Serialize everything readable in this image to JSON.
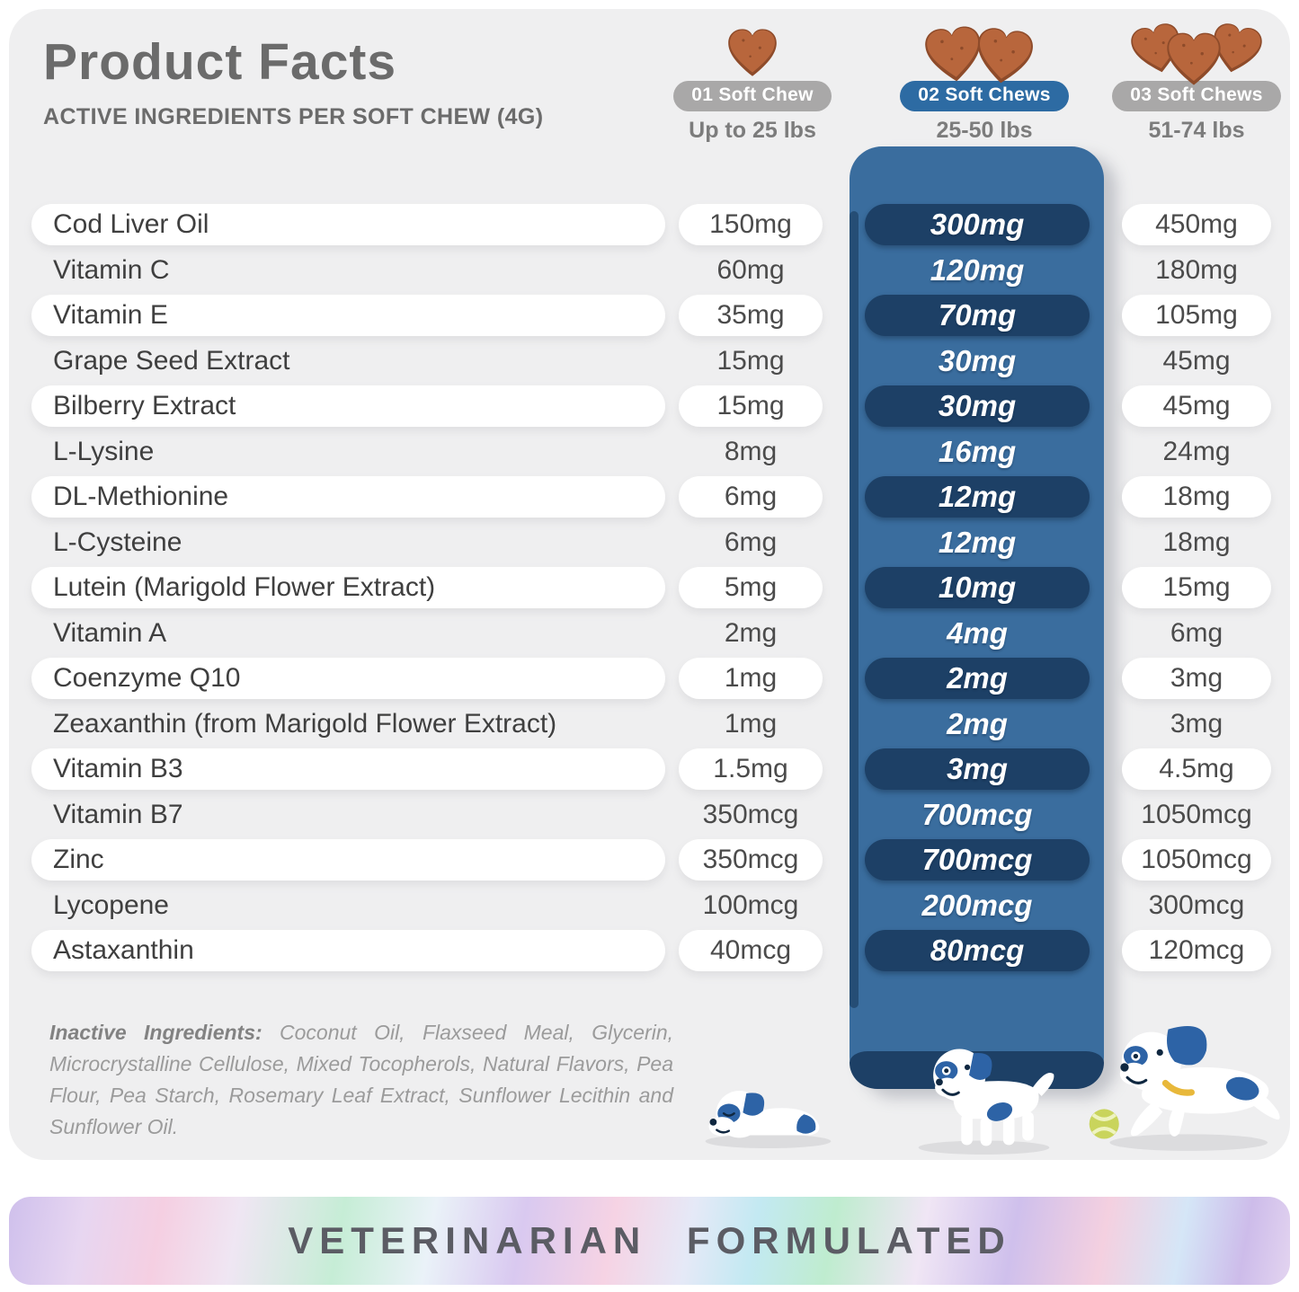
{
  "header": {
    "title": "Product Facts",
    "subtitle": "ACTIVE INGREDIENTS PER SOFT CHEW (4G)"
  },
  "dose_columns": [
    {
      "badge": "01 Soft Chew",
      "weight_range": "Up to 25 lbs",
      "chew_count": 1,
      "highlighted": false
    },
    {
      "badge": "02 Soft Chews",
      "weight_range": "25-50 lbs",
      "chew_count": 2,
      "highlighted": true
    },
    {
      "badge": "03 Soft Chews",
      "weight_range": "51-74 lbs",
      "chew_count": 3,
      "highlighted": false
    }
  ],
  "ingredients": [
    {
      "name": "Cod Liver Oil",
      "doses": [
        "150mg",
        "300mg",
        "450mg"
      ]
    },
    {
      "name": "Vitamin C",
      "doses": [
        "60mg",
        "120mg",
        "180mg"
      ]
    },
    {
      "name": "Vitamin E",
      "doses": [
        "35mg",
        "70mg",
        "105mg"
      ]
    },
    {
      "name": "Grape Seed Extract",
      "doses": [
        "15mg",
        "30mg",
        "45mg"
      ]
    },
    {
      "name": "Bilberry Extract",
      "doses": [
        "15mg",
        "30mg",
        "45mg"
      ]
    },
    {
      "name": "L-Lysine",
      "doses": [
        "8mg",
        "16mg",
        "24mg"
      ]
    },
    {
      "name": "DL-Methionine",
      "doses": [
        "6mg",
        "12mg",
        "18mg"
      ]
    },
    {
      "name": "L-Cysteine",
      "doses": [
        "6mg",
        "12mg",
        "18mg"
      ]
    },
    {
      "name": "Lutein (Marigold Flower Extract)",
      "doses": [
        "5mg",
        "10mg",
        "15mg"
      ]
    },
    {
      "name": "Vitamin A",
      "doses": [
        "2mg",
        "4mg",
        "6mg"
      ]
    },
    {
      "name": "Coenzyme Q10",
      "doses": [
        "1mg",
        "2mg",
        "3mg"
      ]
    },
    {
      "name": "Zeaxanthin (from Marigold Flower Extract)",
      "doses": [
        "1mg",
        "2mg",
        "3mg"
      ]
    },
    {
      "name": "Vitamin B3",
      "doses": [
        "1.5mg",
        "3mg",
        "4.5mg"
      ]
    },
    {
      "name": "Vitamin B7",
      "doses": [
        "350mcg",
        "700mcg",
        "1050mcg"
      ]
    },
    {
      "name": "Zinc",
      "doses": [
        "350mcg",
        "700mcg",
        "1050mcg"
      ]
    },
    {
      "name": "Lycopene",
      "doses": [
        "100mcg",
        "200mcg",
        "300mcg"
      ]
    },
    {
      "name": "Astaxanthin",
      "doses": [
        "40mcg",
        "80mcg",
        "120mcg"
      ]
    }
  ],
  "inactive_ingredients": {
    "label": "Inactive Ingredients:",
    "text": "Coconut Oil, Flaxseed Meal, Glycerin, Microcrystalline Cellulose, Mixed Tocopherols, Natural Flavors, Pea Flour, Pea Starch, Rosemary Leaf Extract, Sunflower Lecithin and Sunflower Oil."
  },
  "footer_banner": {
    "text": "VETERINARIAN FORMULATED"
  },
  "colors": {
    "highlight_banner_blue": "#3a6d9e",
    "dose_pill_navy": "#1d4066",
    "badge_blue": "#2d6ba3",
    "badge_gray": "#a9a8a8",
    "card_background": "#efeff0",
    "chew_brown": "#b8663c"
  }
}
